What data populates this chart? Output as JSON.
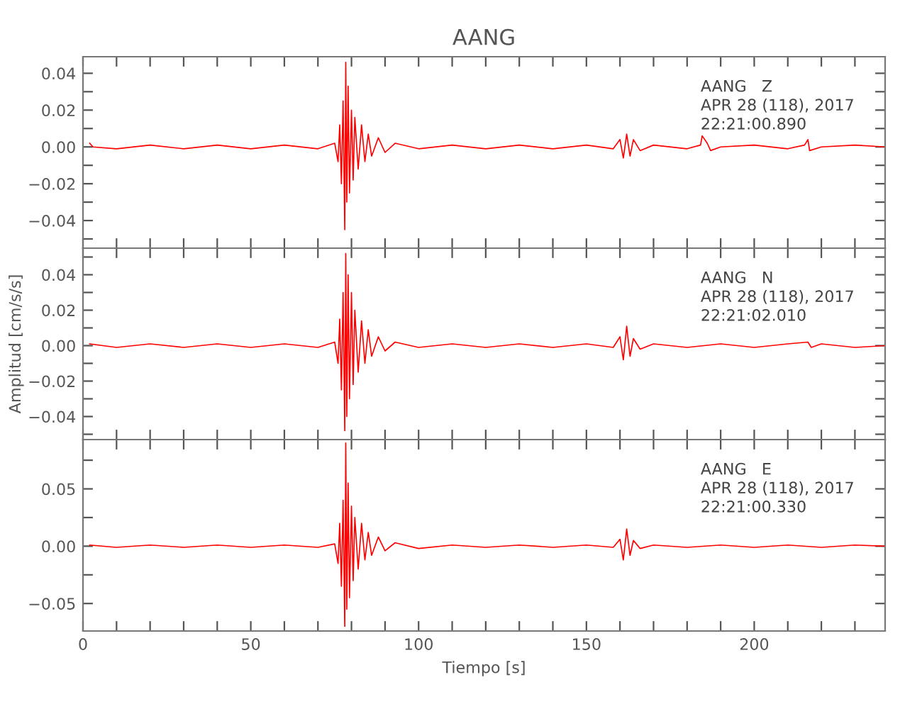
{
  "chart_data": [
    {
      "type": "line",
      "title": "AANG",
      "xlim": [
        0,
        239
      ],
      "ylim": [
        -0.055,
        0.049
      ],
      "xticks": [
        {
          "value": 0,
          "label": null
        },
        {
          "value": 10,
          "label": null
        },
        {
          "value": 20,
          "label": null
        },
        {
          "value": 30,
          "label": null
        },
        {
          "value": 40,
          "label": null
        },
        {
          "value": 50,
          "label": null
        },
        {
          "value": 60,
          "label": null
        },
        {
          "value": 70,
          "label": null
        },
        {
          "value": 80,
          "label": null
        },
        {
          "value": 90,
          "label": null
        },
        {
          "value": 100,
          "label": null
        },
        {
          "value": 110,
          "label": null
        },
        {
          "value": 120,
          "label": null
        },
        {
          "value": 130,
          "label": null
        },
        {
          "value": 140,
          "label": null
        },
        {
          "value": 150,
          "label": null
        },
        {
          "value": 160,
          "label": null
        },
        {
          "value": 170,
          "label": null
        },
        {
          "value": 180,
          "label": null
        },
        {
          "value": 190,
          "label": null
        },
        {
          "value": 200,
          "label": null
        },
        {
          "value": 210,
          "label": null
        },
        {
          "value": 220,
          "label": null
        },
        {
          "value": 230,
          "label": null
        }
      ],
      "yticks": [
        {
          "value": -0.05,
          "label": null
        },
        {
          "value": -0.04,
          "label": "−0.04"
        },
        {
          "value": -0.03,
          "label": null
        },
        {
          "value": -0.02,
          "label": "−0.02"
        },
        {
          "value": -0.01,
          "label": null
        },
        {
          "value": 0,
          "label": "0.00"
        },
        {
          "value": 0.01,
          "label": null
        },
        {
          "value": 0.02,
          "label": "0.02"
        },
        {
          "value": 0.03,
          "label": null
        },
        {
          "value": 0.04,
          "label": "0.04"
        }
      ],
      "tick_labels": "y",
      "grid": false,
      "legend": false,
      "marker": "none",
      "line_style": "solid",
      "annotations": [
        "AANG   Z\nAPR 28 (118), 2017\n22:21:00.890"
      ],
      "series": [
        {
          "color": "#ff0000",
          "x": [
            2,
            3,
            10,
            20,
            30,
            40,
            50,
            60,
            70,
            75,
            76,
            76.5,
            77,
            77.5,
            78,
            78.3,
            78.6,
            79,
            79.4,
            80,
            80.5,
            81,
            82,
            83,
            84,
            85,
            86,
            88,
            90,
            93,
            100,
            110,
            120,
            130,
            140,
            150,
            158,
            160,
            161,
            162,
            163,
            164,
            166,
            170,
            180,
            184,
            184.5,
            186,
            187,
            190,
            200,
            210,
            215,
            216,
            216.5,
            220,
            230,
            239
          ],
          "values": [
            0.002,
            0.0,
            -0.001,
            0.001,
            -0.001,
            0.001,
            -0.001,
            0.001,
            -0.001,
            0.002,
            -0.008,
            0.012,
            -0.02,
            0.025,
            -0.045,
            0.046,
            -0.03,
            0.033,
            -0.025,
            0.02,
            -0.018,
            0.016,
            -0.012,
            0.012,
            -0.008,
            0.007,
            -0.005,
            0.005,
            -0.003,
            0.002,
            -0.001,
            0.001,
            -0.001,
            0.001,
            -0.001,
            0.001,
            -0.001,
            0.004,
            -0.006,
            0.007,
            -0.005,
            0.004,
            -0.002,
            0.001,
            -0.001,
            0.001,
            0.006,
            0.002,
            -0.002,
            0.0,
            0.001,
            -0.001,
            0.001,
            0.004,
            -0.002,
            0.0,
            0.001,
            0.0
          ]
        }
      ]
    },
    {
      "type": "line",
      "ylabel": "Amplitud [cm/s/s]",
      "xlim": [
        0,
        239
      ],
      "ylim": [
        -0.053,
        0.055
      ],
      "xticks": [
        {
          "value": 0,
          "label": null
        },
        {
          "value": 10,
          "label": null
        },
        {
          "value": 20,
          "label": null
        },
        {
          "value": 30,
          "label": null
        },
        {
          "value": 40,
          "label": null
        },
        {
          "value": 50,
          "label": null
        },
        {
          "value": 60,
          "label": null
        },
        {
          "value": 70,
          "label": null
        },
        {
          "value": 80,
          "label": null
        },
        {
          "value": 90,
          "label": null
        },
        {
          "value": 100,
          "label": null
        },
        {
          "value": 110,
          "label": null
        },
        {
          "value": 120,
          "label": null
        },
        {
          "value": 130,
          "label": null
        },
        {
          "value": 140,
          "label": null
        },
        {
          "value": 150,
          "label": null
        },
        {
          "value": 160,
          "label": null
        },
        {
          "value": 170,
          "label": null
        },
        {
          "value": 180,
          "label": null
        },
        {
          "value": 190,
          "label": null
        },
        {
          "value": 200,
          "label": null
        },
        {
          "value": 210,
          "label": null
        },
        {
          "value": 220,
          "label": null
        },
        {
          "value": 230,
          "label": null
        }
      ],
      "yticks": [
        {
          "value": -0.05,
          "label": null
        },
        {
          "value": -0.04,
          "label": "−0.04"
        },
        {
          "value": -0.03,
          "label": null
        },
        {
          "value": -0.02,
          "label": "−0.02"
        },
        {
          "value": -0.01,
          "label": null
        },
        {
          "value": 0,
          "label": "0.00"
        },
        {
          "value": 0.01,
          "label": null
        },
        {
          "value": 0.02,
          "label": "0.02"
        },
        {
          "value": 0.03,
          "label": null
        },
        {
          "value": 0.04,
          "label": "0.04"
        },
        {
          "value": 0.05,
          "label": null
        }
      ],
      "tick_labels": "y",
      "grid": false,
      "legend": false,
      "marker": "none",
      "line_style": "solid",
      "annotations": [
        "AANG   N\nAPR 28 (118), 2017\n22:21:02.010"
      ],
      "series": [
        {
          "color": "#ff0000",
          "x": [
            2,
            10,
            20,
            30,
            40,
            50,
            60,
            70,
            75,
            76,
            76.5,
            77,
            77.5,
            78,
            78.3,
            78.6,
            79,
            79.4,
            80,
            80.5,
            81,
            82,
            83,
            84,
            85,
            86,
            88,
            90,
            93,
            100,
            110,
            120,
            130,
            140,
            150,
            158,
            160,
            161,
            162,
            163,
            164,
            166,
            170,
            180,
            190,
            200,
            210,
            216,
            217,
            220,
            230,
            239
          ],
          "values": [
            0.001,
            -0.001,
            0.001,
            -0.001,
            0.001,
            -0.001,
            0.001,
            -0.001,
            0.002,
            -0.01,
            0.015,
            -0.025,
            0.03,
            -0.048,
            0.052,
            -0.04,
            0.04,
            -0.03,
            0.03,
            -0.022,
            0.02,
            -0.015,
            0.014,
            -0.01,
            0.009,
            -0.006,
            0.005,
            -0.003,
            0.002,
            -0.001,
            0.001,
            -0.001,
            0.001,
            -0.001,
            0.001,
            -0.001,
            0.005,
            -0.008,
            0.011,
            -0.006,
            0.004,
            -0.002,
            0.001,
            -0.001,
            0.001,
            -0.001,
            0.001,
            0.002,
            -0.001,
            0.001,
            -0.001,
            0.0
          ]
        }
      ]
    },
    {
      "type": "line",
      "xlabel": "Tiempo [s]",
      "xlim": [
        0,
        239
      ],
      "ylim": [
        -0.074,
        0.093
      ],
      "xticks": [
        0,
        {
          "value": 10,
          "label": null
        },
        {
          "value": 20,
          "label": null
        },
        {
          "value": 30,
          "label": null
        },
        {
          "value": 40,
          "label": null
        },
        50,
        {
          "value": 60,
          "label": null
        },
        {
          "value": 70,
          "label": null
        },
        {
          "value": 80,
          "label": null
        },
        {
          "value": 90,
          "label": null
        },
        100,
        {
          "value": 110,
          "label": null
        },
        {
          "value": 120,
          "label": null
        },
        {
          "value": 130,
          "label": null
        },
        {
          "value": 140,
          "label": null
        },
        150,
        {
          "value": 160,
          "label": null
        },
        {
          "value": 170,
          "label": null
        },
        {
          "value": 180,
          "label": null
        },
        {
          "value": 190,
          "label": null
        },
        200,
        {
          "value": 210,
          "label": null
        },
        {
          "value": 220,
          "label": null
        },
        {
          "value": 230,
          "label": null
        }
      ],
      "yticks": [
        {
          "value": -0.05,
          "label": "−0.05"
        },
        {
          "value": -0.025,
          "label": null
        },
        {
          "value": 0,
          "label": "0.00"
        },
        {
          "value": 0.025,
          "label": null
        },
        {
          "value": 0.05,
          "label": "0.05"
        },
        {
          "value": 0.075,
          "label": null
        }
      ],
      "grid": false,
      "legend": false,
      "marker": "none",
      "line_style": "solid",
      "annotations": [
        "AANG   E\nAPR 28 (118), 2017\n22:21:00.330"
      ],
      "series": [
        {
          "color": "#ff0000",
          "x": [
            2,
            10,
            20,
            30,
            40,
            50,
            60,
            70,
            75,
            76,
            76.5,
            77,
            77.5,
            78,
            78.3,
            78.6,
            79,
            79.4,
            80,
            80.5,
            81,
            82,
            83,
            84,
            85,
            86,
            88,
            90,
            93,
            100,
            110,
            120,
            130,
            140,
            150,
            158,
            160,
            161,
            162,
            163,
            164,
            166,
            170,
            180,
            190,
            200,
            210,
            220,
            230,
            239
          ],
          "values": [
            0.001,
            -0.001,
            0.001,
            -0.001,
            0.001,
            -0.001,
            0.001,
            -0.001,
            0.002,
            -0.015,
            0.02,
            -0.035,
            0.04,
            -0.07,
            0.09,
            -0.055,
            0.055,
            -0.045,
            0.035,
            -0.03,
            0.025,
            -0.02,
            0.02,
            -0.012,
            0.012,
            -0.008,
            0.008,
            -0.004,
            0.003,
            -0.002,
            0.001,
            -0.001,
            0.001,
            -0.001,
            0.001,
            -0.001,
            0.006,
            -0.012,
            0.015,
            -0.008,
            0.005,
            -0.002,
            0.001,
            -0.001,
            0.001,
            -0.001,
            0.001,
            -0.001,
            0.001,
            0.0
          ]
        }
      ]
    }
  ]
}
